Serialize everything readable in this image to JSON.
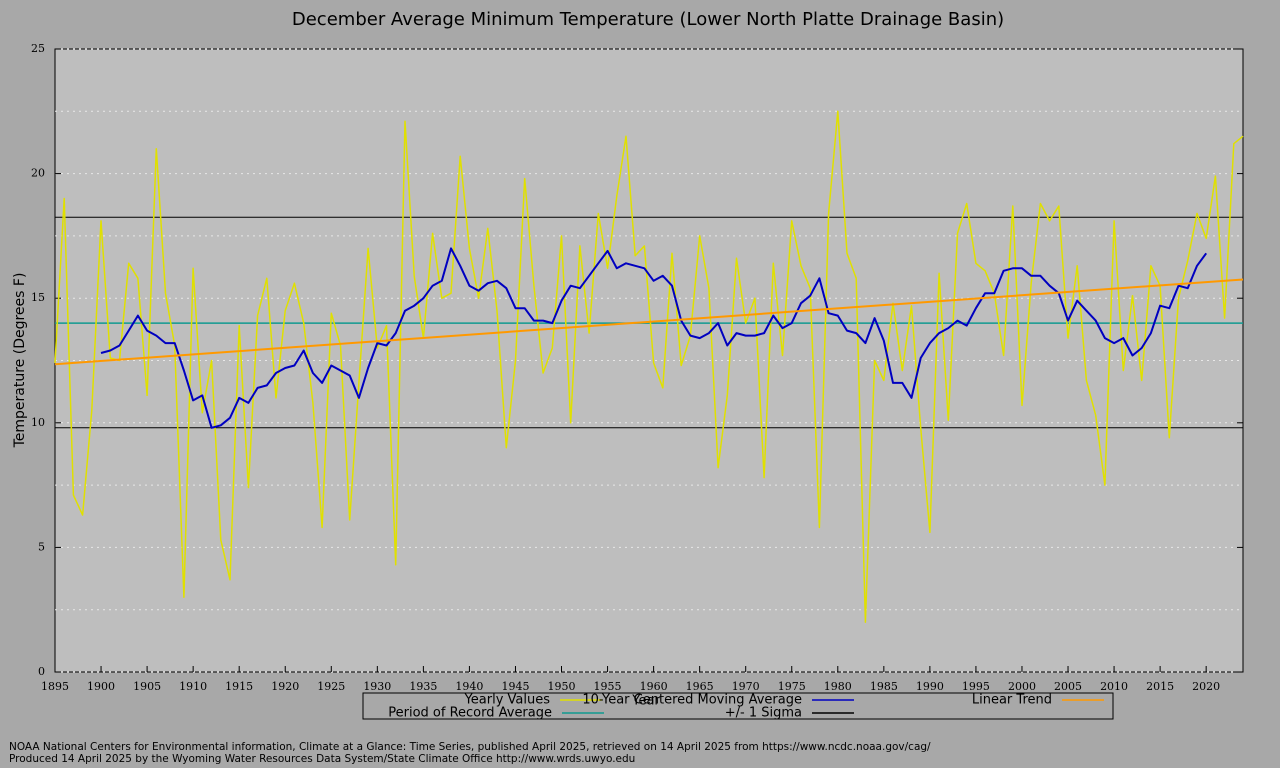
{
  "chart_data": {
    "type": "line",
    "title": "December Average Minimum Temperature (Lower North Platte Drainage Basin)",
    "xlabel": "Year",
    "ylabel": "Temperature (Degrees F)",
    "x": [
      1895,
      1896,
      1897,
      1898,
      1899,
      1900,
      1901,
      1902,
      1903,
      1904,
      1905,
      1906,
      1907,
      1908,
      1909,
      1910,
      1911,
      1912,
      1913,
      1914,
      1915,
      1916,
      1917,
      1918,
      1919,
      1920,
      1921,
      1922,
      1923,
      1924,
      1925,
      1926,
      1927,
      1928,
      1929,
      1930,
      1931,
      1932,
      1933,
      1934,
      1935,
      1936,
      1937,
      1938,
      1939,
      1940,
      1941,
      1942,
      1943,
      1944,
      1945,
      1946,
      1947,
      1948,
      1949,
      1950,
      1951,
      1952,
      1953,
      1954,
      1955,
      1956,
      1957,
      1958,
      1959,
      1960,
      1961,
      1962,
      1963,
      1964,
      1965,
      1966,
      1967,
      1968,
      1969,
      1970,
      1971,
      1972,
      1973,
      1974,
      1975,
      1976,
      1977,
      1978,
      1979,
      1980,
      1981,
      1982,
      1983,
      1984,
      1985,
      1986,
      1987,
      1988,
      1989,
      1990,
      1991,
      1992,
      1993,
      1994,
      1995,
      1996,
      1997,
      1998,
      1999,
      2000,
      2001,
      2002,
      2003,
      2004,
      2005,
      2006,
      2007,
      2008,
      2009,
      2010,
      2011,
      2012,
      2013,
      2014,
      2015,
      2016,
      2017,
      2018,
      2019,
      2020,
      2021,
      2022,
      2023,
      2024
    ],
    "series": [
      {
        "name": "Yearly Values",
        "color": "#e0e000",
        "values": [
          12.4,
          19.0,
          7.1,
          6.3,
          10.5,
          18.1,
          12.6,
          12.5,
          16.4,
          15.8,
          11.1,
          21.0,
          15.2,
          13.1,
          3.0,
          16.2,
          10.4,
          12.5,
          5.3,
          3.7,
          13.9,
          7.4,
          14.3,
          15.8,
          11.0,
          14.5,
          15.6,
          14.0,
          10.8,
          5.8,
          14.4,
          13.1,
          6.1,
          11.6,
          17.0,
          13.0,
          13.9,
          4.3,
          22.1,
          15.9,
          13.4,
          17.6,
          15.0,
          15.2,
          20.7,
          17.0,
          15.0,
          17.8,
          14.5,
          9.0,
          12.5,
          19.8,
          15.5,
          12.0,
          13.0,
          17.5,
          10.0,
          17.1,
          13.6,
          18.4,
          16.2,
          19.1,
          21.5,
          16.7,
          17.1,
          12.4,
          11.4,
          16.8,
          12.3,
          13.5,
          17.5,
          15.4,
          8.2,
          11.1,
          16.6,
          14.0,
          15.0,
          7.8,
          16.4,
          12.7,
          18.1,
          16.3,
          15.4,
          5.8,
          18.4,
          22.5,
          16.8,
          15.8,
          2.0,
          12.5,
          11.7,
          14.8,
          12.1,
          14.7,
          9.8,
          5.6,
          16.0,
          10.1,
          17.6,
          18.8,
          16.4,
          16.1,
          15.2,
          12.7,
          18.7,
          10.7,
          15.6,
          18.8,
          18.1,
          18.7,
          13.4,
          16.3,
          11.7,
          10.3,
          7.5,
          18.1,
          12.1,
          15.1,
          11.7,
          16.3,
          15.5,
          9.4,
          15.0,
          16.5,
          18.4,
          17.4,
          19.9,
          14.2,
          21.2,
          21.5
        ]
      },
      {
        "name": "10-Year Centered Moving Average",
        "color": "#0000c0",
        "values": [
          null,
          null,
          null,
          null,
          null,
          12.8,
          12.9,
          13.1,
          13.7,
          14.3,
          13.7,
          13.5,
          13.2,
          13.2,
          12.1,
          10.9,
          11.1,
          9.8,
          9.9,
          10.2,
          11.0,
          10.8,
          11.4,
          11.5,
          12.0,
          12.2,
          12.3,
          12.9,
          12.0,
          11.6,
          12.3,
          12.1,
          11.9,
          11.0,
          12.2,
          13.2,
          13.1,
          13.6,
          14.5,
          14.7,
          15.0,
          15.5,
          15.7,
          17.0,
          16.3,
          15.5,
          15.3,
          15.6,
          15.7,
          15.4,
          14.6,
          14.6,
          14.1,
          14.1,
          14.0,
          14.9,
          15.5,
          15.4,
          15.9,
          16.4,
          16.9,
          16.2,
          16.4,
          16.3,
          16.2,
          15.7,
          15.9,
          15.5,
          14.1,
          13.5,
          13.4,
          13.6,
          14.0,
          13.1,
          13.6,
          13.5,
          13.5,
          13.6,
          14.3,
          13.8,
          14.0,
          14.8,
          15.1,
          15.8,
          14.4,
          14.3,
          13.7,
          13.6,
          13.2,
          14.2,
          13.3,
          11.6,
          11.6,
          11.0,
          12.6,
          13.2,
          13.6,
          13.8,
          14.1,
          13.9,
          14.6,
          15.2,
          15.2,
          16.1,
          16.2,
          16.2,
          15.9,
          15.9,
          15.5,
          15.2,
          14.1,
          14.9,
          14.5,
          14.1,
          13.4,
          13.2,
          13.4,
          12.7,
          13.0,
          13.6,
          14.7,
          14.6,
          15.5,
          15.4,
          16.3,
          16.8,
          null,
          null,
          null,
          null
        ]
      }
    ],
    "trend": {
      "name": "Linear Trend",
      "color": "#ff9900",
      "x": [
        1895,
        2024
      ],
      "values": [
        12.35,
        15.75
      ]
    },
    "average": {
      "name": "Period of Record Average",
      "color": "#109a90",
      "value": 14.0
    },
    "sigma": {
      "name": "+/- 1 Sigma",
      "color": "#000000",
      "values": [
        18.25,
        9.8
      ]
    },
    "xlim": [
      1895,
      2024
    ],
    "ylim": [
      0,
      25
    ],
    "xticks": [
      1895,
      1900,
      1905,
      1910,
      1915,
      1920,
      1925,
      1930,
      1935,
      1940,
      1945,
      1950,
      1955,
      1960,
      1965,
      1970,
      1975,
      1980,
      1985,
      1990,
      1995,
      2000,
      2005,
      2010,
      2015,
      2020
    ],
    "yticks": [
      0,
      5,
      10,
      15,
      20,
      25
    ],
    "minor_yticks": [
      2.5,
      7.5,
      12.5,
      17.5,
      22.5
    ],
    "grid": true,
    "notes": [
      "NOAA National Centers for Environmental information, Climate at a Glance: Time Series, published April 2025, retrieved on 14 April 2025 from https://www.ncdc.noaa.gov/cag/",
      "Produced 14 April 2025 by the Wyoming Water Resources Data System/State Climate Office http://www.wrds.uwyo.edu"
    ]
  }
}
